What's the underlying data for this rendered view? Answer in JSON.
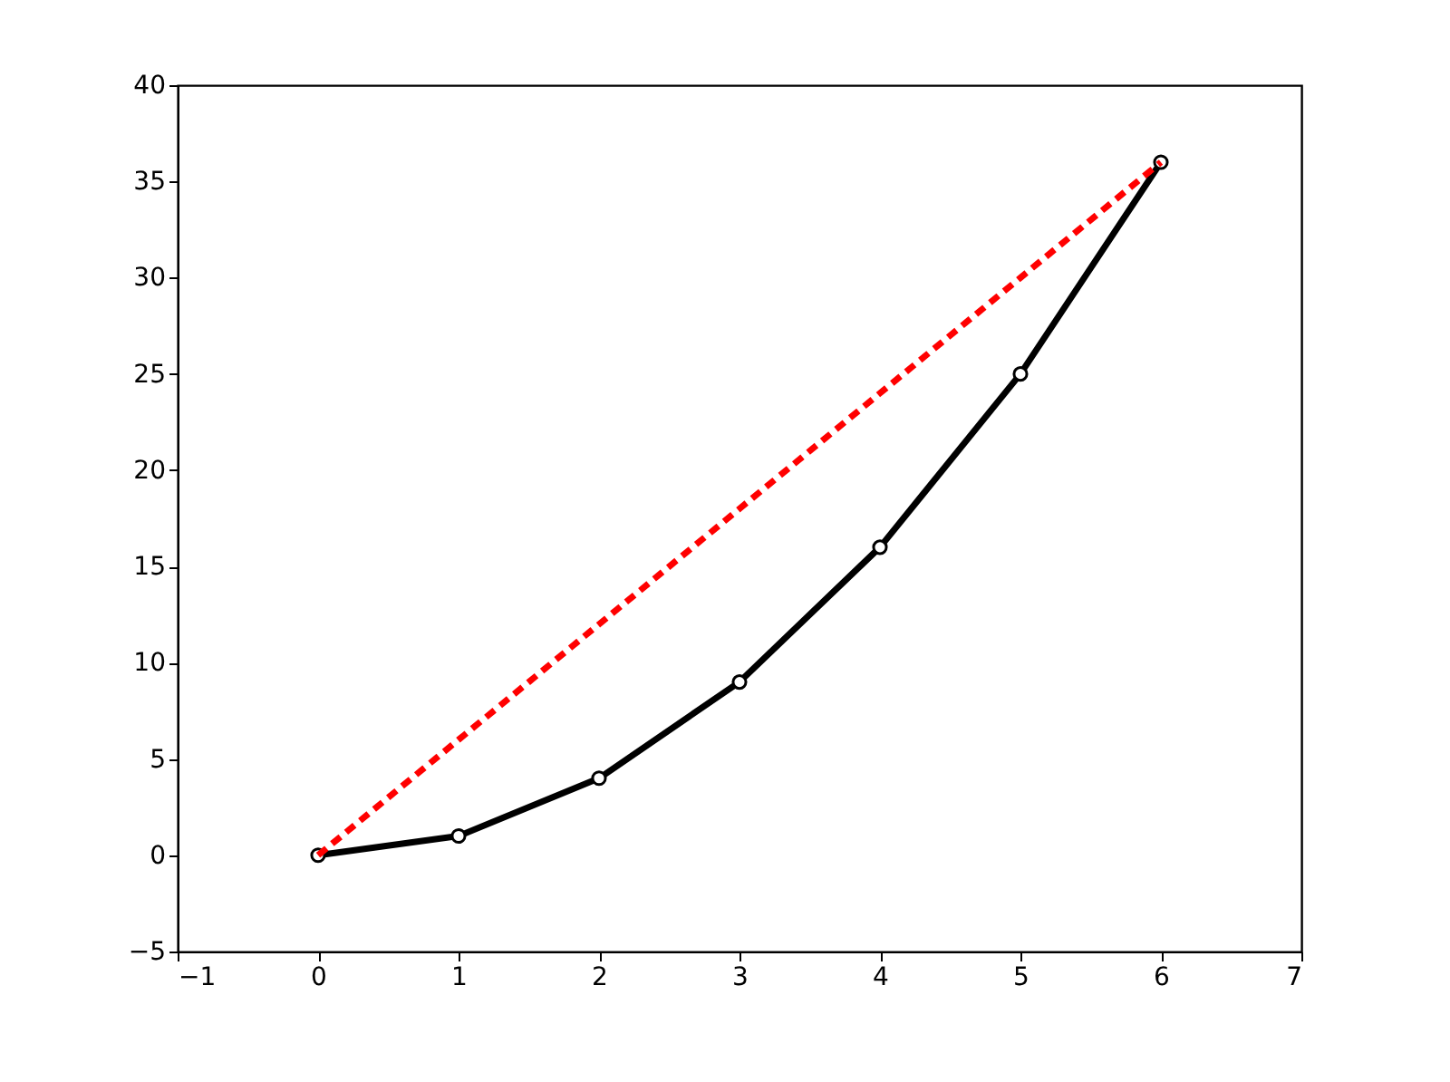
{
  "chart_data": {
    "type": "line",
    "x": [
      0,
      1,
      2,
      3,
      4,
      5,
      6
    ],
    "xlim": [
      -1,
      7
    ],
    "xticks": [
      -1,
      0,
      1,
      2,
      3,
      4,
      5,
      6,
      7
    ],
    "ylim": [
      -5,
      40
    ],
    "yticks": [
      -5,
      0,
      5,
      10,
      15,
      20,
      25,
      30,
      35,
      40
    ],
    "series": [
      {
        "color": "#000000",
        "values": [
          0,
          1,
          4,
          9,
          16,
          25,
          36
        ],
        "marker": "circle",
        "line_style": "solid"
      },
      {
        "color": "#ff0000",
        "values": [
          0,
          6,
          12,
          18,
          24,
          30,
          36
        ],
        "marker": "none",
        "line_style": "dashed"
      }
    ]
  }
}
